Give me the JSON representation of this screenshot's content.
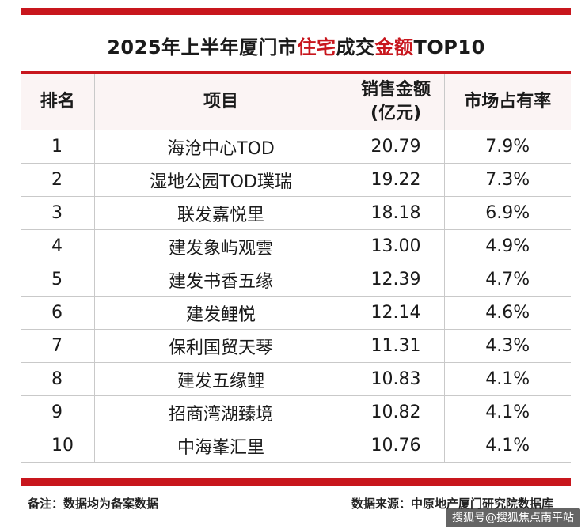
{
  "title": {
    "prefix": "2025年上半年厦门市",
    "highlight1": "住宅",
    "middle": "成交",
    "highlight2": "金额",
    "suffix": "TOP10"
  },
  "table": {
    "headers": {
      "rank": "排名",
      "project": "项目",
      "amount_line1": "销售金额",
      "amount_line2": "(亿元)",
      "share": "市场占有率"
    },
    "rows": [
      {
        "rank": "1",
        "project": "海沧中心TOD",
        "amount": "20.79",
        "share": "7.9%"
      },
      {
        "rank": "2",
        "project": "湿地公园TOD璞瑞",
        "amount": "19.22",
        "share": "7.3%"
      },
      {
        "rank": "3",
        "project": "联发嘉悦里",
        "amount": "18.18",
        "share": "6.9%"
      },
      {
        "rank": "4",
        "project": "建发象屿观雲",
        "amount": "13.00",
        "share": "4.9%"
      },
      {
        "rank": "5",
        "project": "建发书香五缘",
        "amount": "12.39",
        "share": "4.7%"
      },
      {
        "rank": "6",
        "project": "建发鲤悦",
        "amount": "12.14",
        "share": "4.6%"
      },
      {
        "rank": "7",
        "project": "保利国贸天琴",
        "amount": "11.31",
        "share": "4.3%"
      },
      {
        "rank": "8",
        "project": "建发五缘鲤",
        "amount": "10.83",
        "share": "4.1%"
      },
      {
        "rank": "9",
        "project": "招商湾湖臻境",
        "amount": "10.82",
        "share": "4.1%"
      },
      {
        "rank": "10",
        "project": "中海峯汇里",
        "amount": "10.76",
        "share": "4.1%"
      }
    ]
  },
  "footnote": "备注：数据均为备案数据",
  "source": "数据来源：中原地产厦门研究院数据库",
  "watermark": "搜狐号@搜狐焦点南平站",
  "colors": {
    "accent": "#c8161d"
  }
}
